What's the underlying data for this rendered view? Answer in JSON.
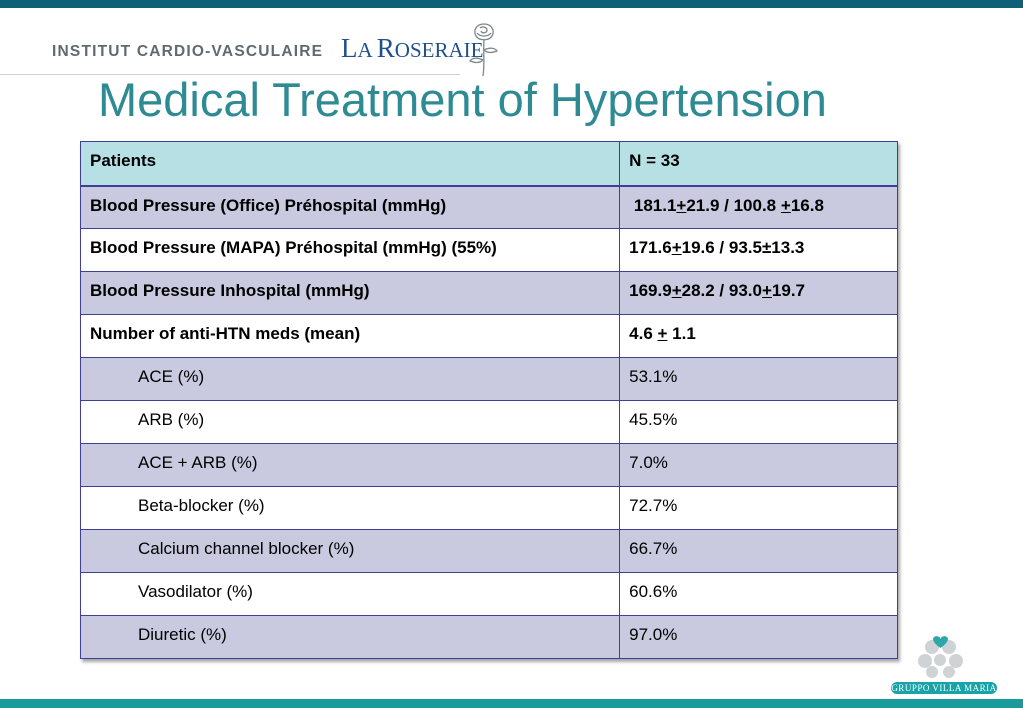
{
  "header": {
    "institute": "INSTITUT CARDIO-VASCULAIRE",
    "brand_prefix": "L",
    "brand_small1": "A ",
    "brand_r": "R",
    "brand_small2": "OSERAIE"
  },
  "title": "Medical Treatment of Hypertension",
  "table": {
    "header": [
      "Patients",
      "N = 33"
    ],
    "rows": [
      {
        "label": "Blood Pressure (Office)  Préhospital (mmHg)",
        "value_parts": [
          " 181.1",
          "+",
          "21.9 / 100.8 ",
          "+",
          "16.8"
        ]
      },
      {
        "label": "Blood Pressure (MAPA) Préhospital (mmHg) (55%)",
        "value_parts": [
          "171.6",
          "+",
          "19.6 / 93.5±13.3"
        ]
      },
      {
        "label": "Blood Pressure Inhospital (mmHg)",
        "value_parts": [
          "169.9",
          "+",
          "28.2 / 93.0",
          "+",
          "19.7"
        ]
      },
      {
        "label": "Number of anti-HTN meds (mean)",
        "value_parts": [
          "4.6 ",
          "+",
          " 1.1"
        ]
      },
      {
        "label": "ACE (%)",
        "value": "53.1%"
      },
      {
        "label": "ARB (%)",
        "value": "45.5%"
      },
      {
        "label": "ACE + ARB (%)",
        "value": "7.0%"
      },
      {
        "label": "Beta-blocker (%)",
        "value": "72.7%"
      },
      {
        "label": "Calcium channel blocker (%)",
        "value": "66.7%"
      },
      {
        "label": "Vasodilator (%)",
        "value": "60.6%"
      },
      {
        "label": "Diuretic (%)",
        "value": "97.0%"
      }
    ]
  },
  "footer_logo": {
    "text": "GRUPPO VILLA MARIA",
    "color": "#17a3a8"
  },
  "colors": {
    "title": "#2e8a93",
    "header_bg": "#b6e0e4",
    "shaded_row": "#c9c9df",
    "border": "#3f3f9a",
    "top_bar": "#0e5f78",
    "bottom_bar": "#1a9b9b"
  }
}
